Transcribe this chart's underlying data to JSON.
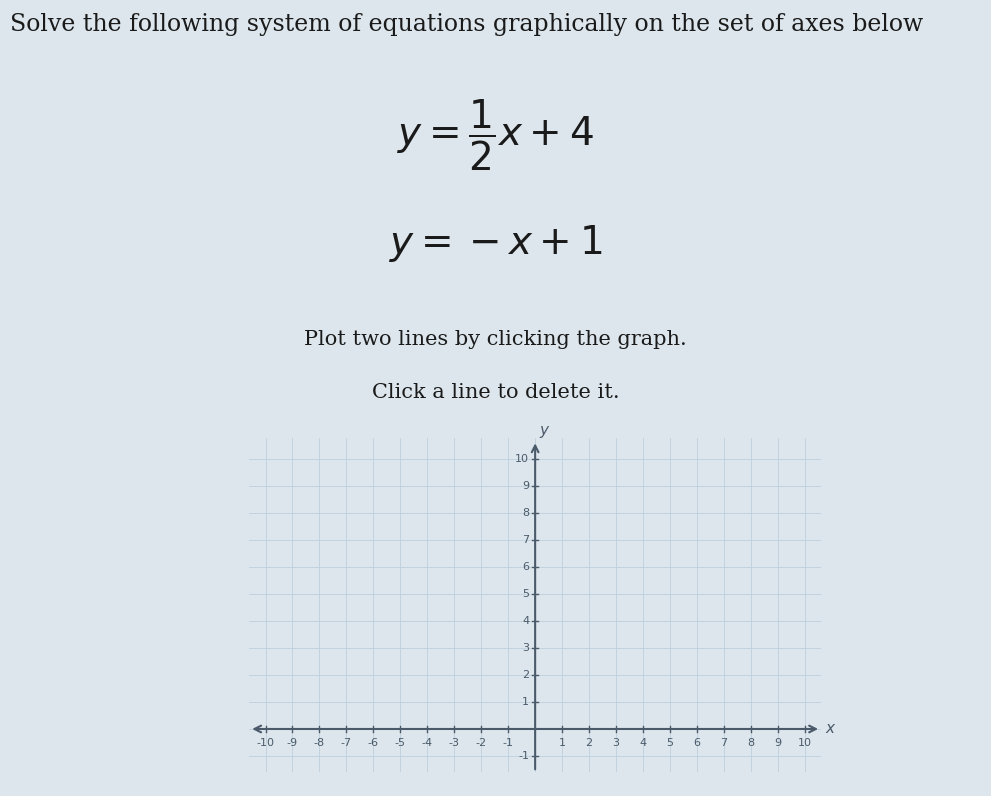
{
  "title": "Solve the following system of equations graphically on the set of axes below",
  "instruction1": "Plot two lines by clicking the graph.",
  "instruction2": "Click a line to delete it.",
  "xlim": [
    -10,
    10
  ],
  "ylim": [
    -1,
    10
  ],
  "xticks": [
    -10,
    -9,
    -8,
    -7,
    -6,
    -5,
    -4,
    -3,
    -2,
    -1,
    1,
    2,
    3,
    4,
    5,
    6,
    7,
    8,
    9,
    10
  ],
  "yticks": [
    1,
    2,
    3,
    4,
    5,
    6,
    7,
    8,
    9,
    10
  ],
  "graph_bg": "#f0f4f8",
  "outer_bg": "#dce6ec",
  "grid_color": "#bdd0dd",
  "axis_color": "#4a5a6a",
  "text_color": "#1a1a1a",
  "title_fontsize": 17,
  "eq_fontsize": 28,
  "instr_fontsize": 15,
  "tick_fontsize": 8,
  "figsize": [
    9.91,
    7.96
  ],
  "dpi": 100
}
